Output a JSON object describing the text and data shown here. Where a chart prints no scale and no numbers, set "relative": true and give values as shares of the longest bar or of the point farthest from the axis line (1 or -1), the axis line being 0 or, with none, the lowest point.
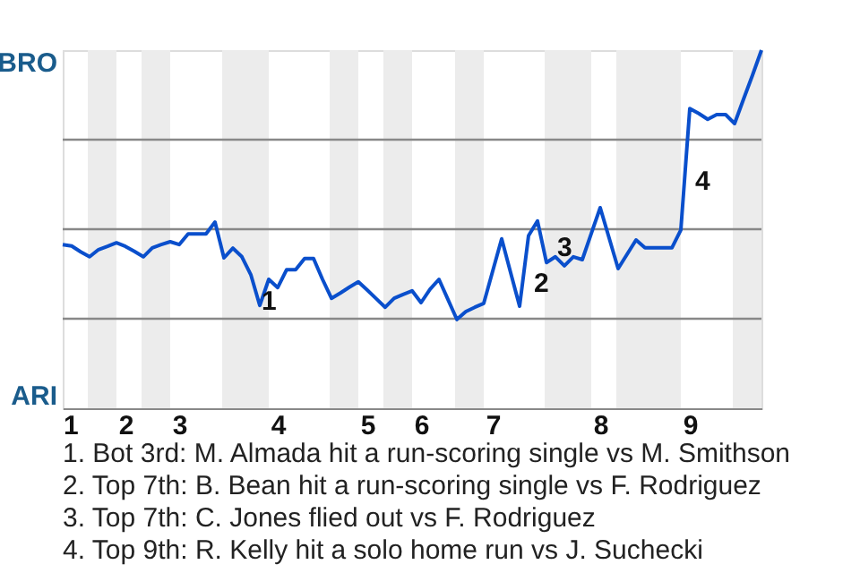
{
  "chart_data": {
    "type": "line",
    "relative": true,
    "categories": [
      "1",
      null,
      null,
      null,
      null,
      null,
      null,
      "2",
      null,
      null,
      null,
      null,
      null,
      "3",
      null,
      null,
      null,
      null,
      null,
      null,
      null,
      null,
      null,
      null,
      "4",
      null,
      null,
      null,
      null,
      null,
      null,
      null,
      null,
      null,
      "5",
      null,
      null,
      null,
      null,
      null,
      "6",
      null,
      null,
      null,
      null,
      null,
      null,
      null,
      "7",
      null,
      null,
      null,
      null,
      null,
      null,
      null,
      null,
      null,
      null,
      null,
      "8",
      null,
      null,
      null,
      null,
      null,
      null,
      null,
      null,
      null,
      "9",
      null,
      null,
      null,
      null,
      null,
      null,
      null,
      null
    ],
    "series": [
      {
        "color": "#0a4fcc",
        "values": [
          0.457,
          0.453,
          0.437,
          0.423,
          0.443,
          0.452,
          0.462,
          0.452,
          0.438,
          0.423,
          0.448,
          0.457,
          0.465,
          0.457,
          0.487,
          0.487,
          0.487,
          0.52,
          0.42,
          0.447,
          0.423,
          0.373,
          0.287,
          0.36,
          0.337,
          0.387,
          0.387,
          0.418,
          0.418,
          0.36,
          0.307,
          0.322,
          0.338,
          0.353,
          0.33,
          0.306,
          0.282,
          0.307,
          0.318,
          0.328,
          0.295,
          0.332,
          0.36,
          0.304,
          0.248,
          0.27,
          0.282,
          0.293,
          0.383,
          0.473,
          0.379,
          0.285,
          0.482,
          0.523,
          0.407,
          0.423,
          0.398,
          0.423,
          0.415,
          0.488,
          0.56,
          0.475,
          0.39,
          0.43,
          0.47,
          0.448,
          0.448,
          0.448,
          0.448,
          0.498,
          0.837,
          0.823,
          0.807,
          0.82,
          0.82,
          0.795,
          0.863,
          0.93,
          1.0
        ]
      }
    ],
    "ref_lines": [
      {
        "axis": "y",
        "value": 0.25,
        "color": "#888888"
      },
      {
        "axis": "y",
        "value": 0.5,
        "color": "#888888"
      },
      {
        "axis": "y",
        "value": 0.75,
        "color": "#888888"
      }
    ],
    "annotations": [
      "BRO",
      "ARI",
      "1",
      "2",
      "3",
      "4",
      "1. Bot 3rd: M. Almada hit a run-scoring single vs M. Smithson",
      "2. Top 7th: B. Bean hit a run-scoring single vs F. Rodriguez",
      "3. Top 7th: C. Jones flied out vs F. Rodriguez",
      "4. Top 9th: R. Kelly hit a solo home run vs J. Suchecki"
    ]
  }
}
